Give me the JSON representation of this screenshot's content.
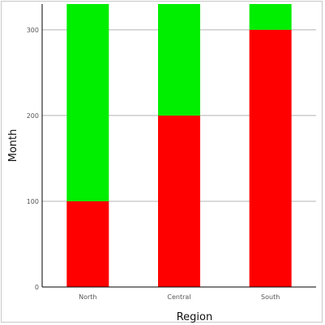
{
  "chart_data": {
    "type": "bar",
    "stacked": true,
    "categories": [
      "North",
      "Central",
      "South"
    ],
    "series": [
      {
        "color": "#ff0000",
        "values": [
          100,
          200,
          300
        ]
      },
      {
        "color": "#00ee00",
        "values": [
          230,
          130,
          30
        ]
      }
    ],
    "xlabel": "Region",
    "ylabel": "Month",
    "ylim": [
      0,
      330
    ],
    "yticks": [
      0,
      100,
      200,
      300
    ],
    "ytick_labels": [
      "0",
      "100",
      "200",
      "300"
    ],
    "grid": true,
    "legend": "none"
  }
}
